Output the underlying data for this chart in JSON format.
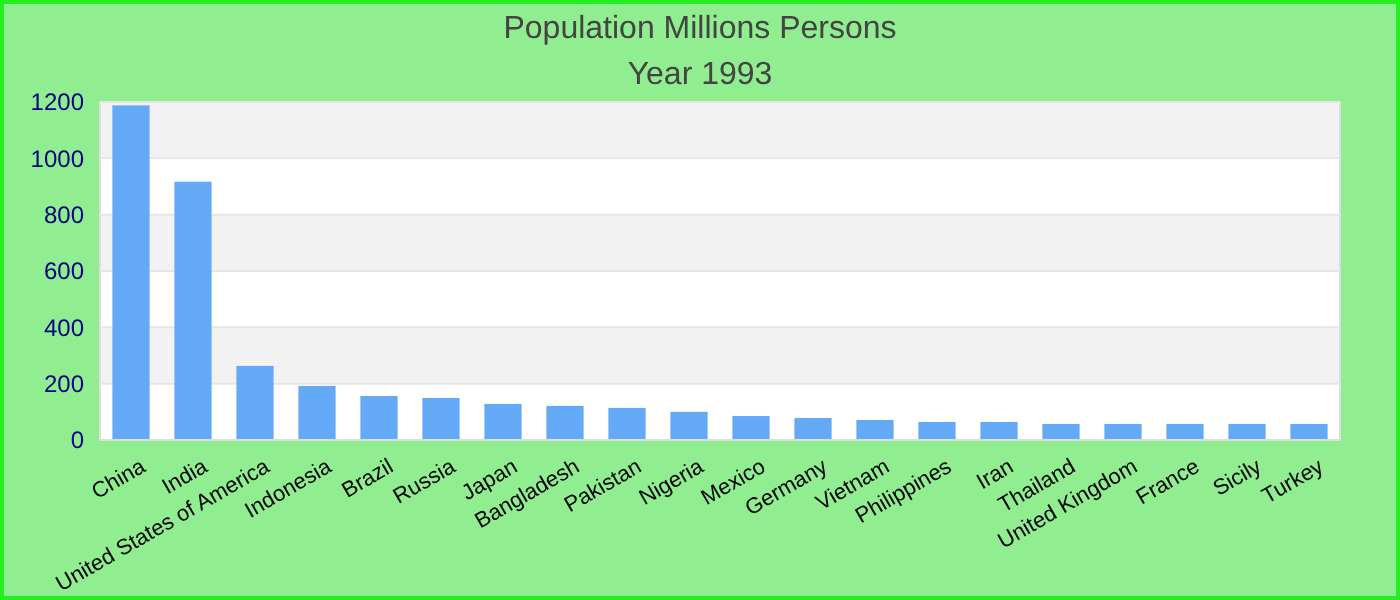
{
  "chart_data": {
    "type": "bar",
    "title": "Population Millions Persons",
    "subtitle": "Year 1993",
    "categories": [
      "China",
      "India",
      "United States of America",
      "Indonesia",
      "Brazil",
      "Russia",
      "Japan",
      "Bangladesh",
      "Pakistan",
      "Nigeria",
      "Mexico",
      "Germany",
      "Vietnam",
      "Philippines",
      "Iran",
      "Thailand",
      "United Kingdom",
      "France",
      "Sicily",
      "Turkey"
    ],
    "values": [
      1188,
      917,
      263,
      192,
      156,
      149,
      128,
      121,
      114,
      100,
      85,
      78,
      71,
      64,
      64,
      57,
      57,
      57,
      57,
      57
    ],
    "color": "#63a9f5",
    "ylim": [
      0,
      1200
    ],
    "yticks": [
      0,
      200,
      400,
      600,
      800,
      1000,
      1200
    ],
    "grid": true
  }
}
